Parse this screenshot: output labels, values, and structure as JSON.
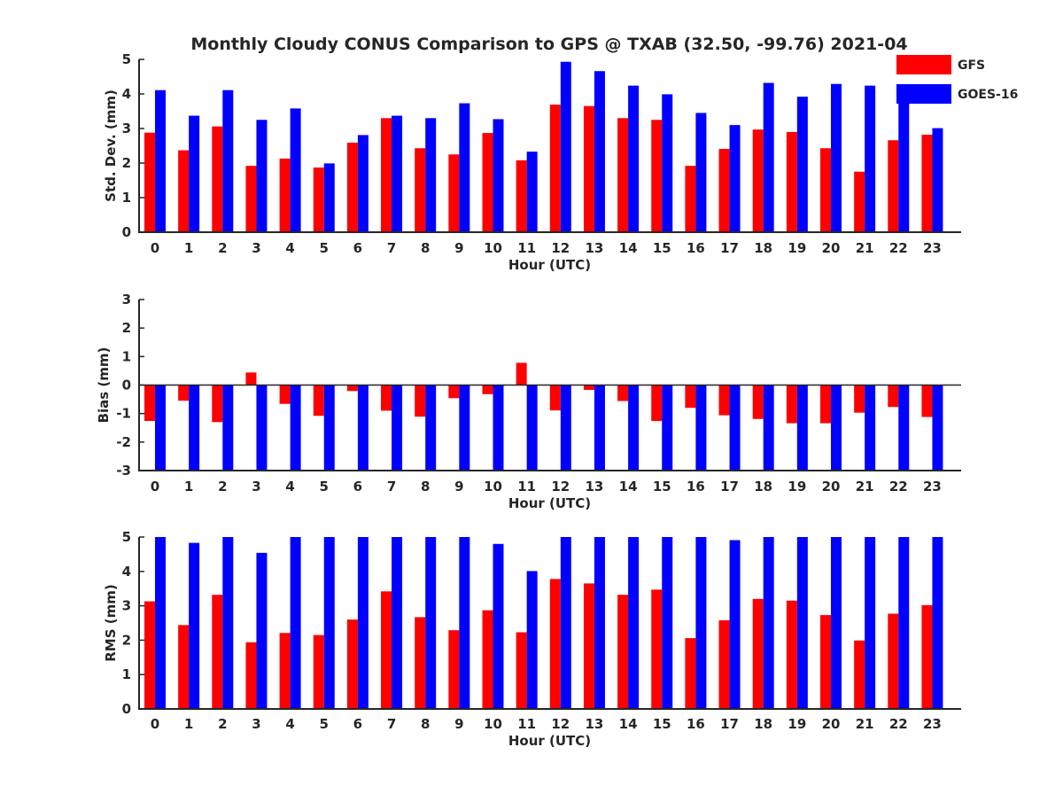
{
  "chart_data": {
    "title": "Monthly Cloudy CONUS Comparison to GPS @ TXAB (32.50, -99.76) 2021-04",
    "legend": {
      "placement": "top-right",
      "entries": [
        {
          "name": "GFS",
          "color": "#ff0000"
        },
        {
          "name": "GOES-16",
          "color": "#0000ff"
        }
      ]
    },
    "panels": [
      {
        "type": "bar",
        "ylabel": "Std. Dev. (mm)",
        "xlabel": "Hour (UTC)",
        "ylim": [
          0,
          5
        ],
        "yticks": [
          "0",
          "1",
          "2",
          "3",
          "4",
          "5"
        ],
        "categories": [
          "0",
          "1",
          "2",
          "3",
          "4",
          "5",
          "6",
          "7",
          "8",
          "9",
          "10",
          "11",
          "12",
          "13",
          "14",
          "15",
          "16",
          "17",
          "18",
          "19",
          "20",
          "21",
          "22",
          "23"
        ],
        "series": [
          {
            "name": "GFS",
            "color": "#ff0000",
            "values": [
              2.88,
              2.37,
              3.06,
              1.92,
              2.13,
              1.87,
              2.59,
              3.3,
              2.43,
              2.25,
              2.87,
              2.08,
              3.69,
              3.65,
              3.3,
              3.25,
              1.92,
              2.41,
              2.97,
              2.9,
              2.43,
              1.75,
              2.66,
              2.82
            ]
          },
          {
            "name": "GOES-16",
            "color": "#0000ff",
            "values": [
              4.11,
              3.37,
              4.11,
              3.25,
              3.58,
              1.99,
              2.81,
              3.37,
              3.3,
              3.73,
              3.27,
              2.33,
              4.93,
              4.66,
              4.24,
              3.99,
              3.45,
              3.1,
              4.32,
              3.92,
              4.29,
              4.24,
              3.92,
              3.01
            ]
          }
        ]
      },
      {
        "type": "bar",
        "ylabel": "Bias (mm)",
        "xlabel": "Hour (UTC)",
        "ylim": [
          -3,
          3
        ],
        "yticks": [
          "-3",
          "-2",
          "-1",
          "0",
          "1",
          "2",
          "3"
        ],
        "categories": [
          "0",
          "1",
          "2",
          "3",
          "4",
          "5",
          "6",
          "7",
          "8",
          "9",
          "10",
          "11",
          "12",
          "13",
          "14",
          "15",
          "16",
          "17",
          "18",
          "19",
          "20",
          "21",
          "22",
          "23"
        ],
        "series": [
          {
            "name": "GFS",
            "color": "#ff0000",
            "values": [
              -1.26,
              -0.55,
              -1.3,
              0.44,
              -0.66,
              -1.08,
              -0.21,
              -0.9,
              -1.11,
              -0.46,
              -0.32,
              0.78,
              -0.89,
              -0.17,
              -0.56,
              -1.26,
              -0.8,
              -1.06,
              -1.19,
              -1.34,
              -1.34,
              -0.97,
              -0.77,
              -1.12
            ]
          },
          {
            "name": "GOES-16",
            "color": "#0000ff",
            "values": [
              -3,
              -3,
              -3,
              -3,
              -3,
              -3,
              -3,
              -3,
              -3,
              -3,
              -3,
              -3,
              -3,
              -3,
              -3,
              -3,
              -3,
              -3,
              -3,
              -3,
              -3,
              -3,
              -3,
              -3
            ]
          }
        ]
      },
      {
        "type": "bar",
        "ylabel": "RMS (mm)",
        "xlabel": "Hour (UTC)",
        "ylim": [
          0,
          5
        ],
        "yticks": [
          "0",
          "1",
          "2",
          "3",
          "4",
          "5"
        ],
        "categories": [
          "0",
          "1",
          "2",
          "3",
          "4",
          "5",
          "6",
          "7",
          "8",
          "9",
          "10",
          "11",
          "12",
          "13",
          "14",
          "15",
          "16",
          "17",
          "18",
          "19",
          "20",
          "21",
          "22",
          "23"
        ],
        "series": [
          {
            "name": "GFS",
            "color": "#ff0000",
            "values": [
              3.13,
              2.44,
              3.32,
              1.94,
              2.21,
              2.15,
              2.6,
              3.42,
              2.67,
              2.29,
              2.87,
              2.23,
              3.78,
              3.65,
              3.32,
              3.47,
              2.06,
              2.58,
              3.2,
              3.15,
              2.73,
              1.99,
              2.77,
              3.02
            ]
          },
          {
            "name": "GOES-16",
            "color": "#0000ff",
            "values": [
              5,
              4.83,
              5,
              4.54,
              5,
              5,
              5,
              5,
              5,
              5,
              4.8,
              4.01,
              5,
              5,
              5,
              5,
              5,
              4.91,
              5,
              5,
              5,
              5,
              5,
              5
            ]
          }
        ]
      }
    ]
  }
}
